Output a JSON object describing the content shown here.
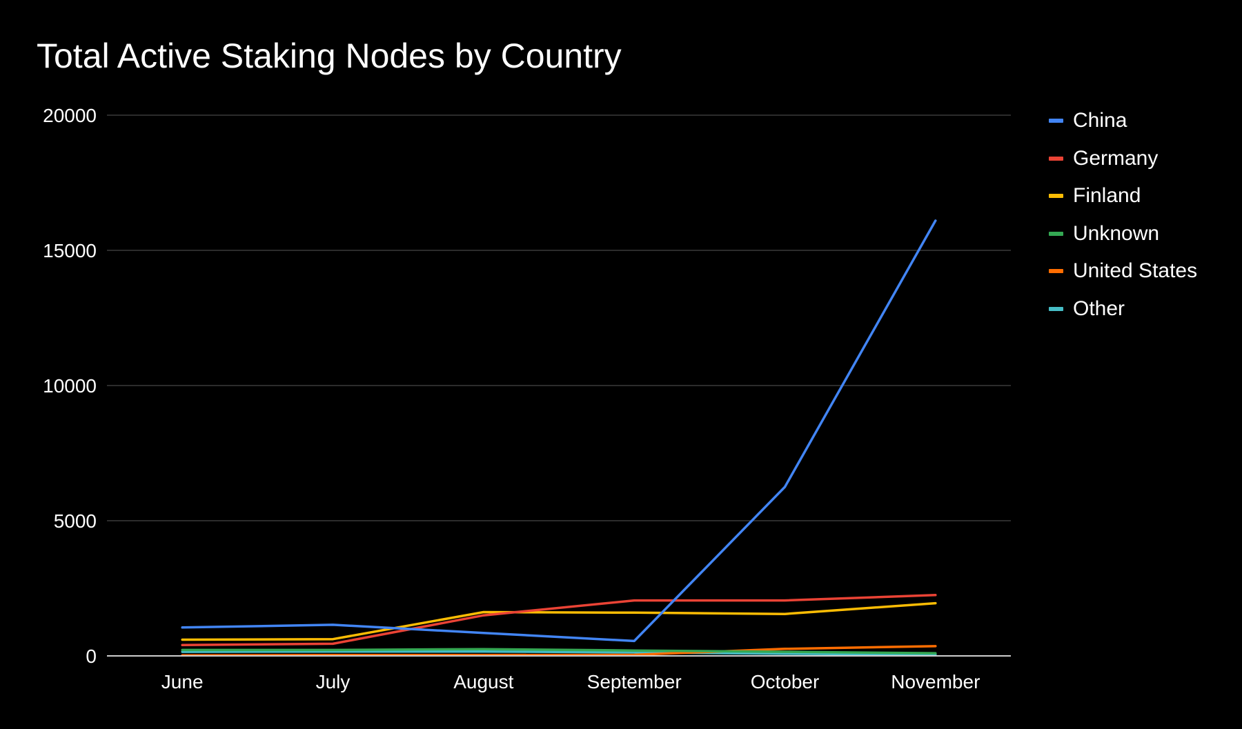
{
  "chart_data": {
    "type": "line",
    "title": "Total Active Staking Nodes by Country",
    "xlabel": "",
    "ylabel": "",
    "categories": [
      "June",
      "July",
      "August",
      "September",
      "October",
      "November"
    ],
    "ylim": [
      0,
      20000
    ],
    "yticks": [
      0,
      5000,
      10000,
      15000,
      20000
    ],
    "grid": true,
    "legend_position": "right",
    "series": [
      {
        "name": "China",
        "color": "#4285f4",
        "values": [
          1050,
          1150,
          850,
          550,
          6250,
          16100
        ]
      },
      {
        "name": "Germany",
        "color": "#ea4335",
        "values": [
          400,
          450,
          1500,
          2050,
          2050,
          2250
        ]
      },
      {
        "name": "Finland",
        "color": "#fbbc04",
        "values": [
          600,
          620,
          1620,
          1600,
          1550,
          1950
        ]
      },
      {
        "name": "Unknown",
        "color": "#34a853",
        "values": [
          220,
          220,
          250,
          200,
          150,
          100
        ]
      },
      {
        "name": "United States",
        "color": "#ff6d01",
        "values": [
          20,
          30,
          30,
          40,
          260,
          360
        ]
      },
      {
        "name": "Other",
        "color": "#46bdc6",
        "values": [
          150,
          160,
          160,
          130,
          80,
          50
        ]
      }
    ]
  }
}
